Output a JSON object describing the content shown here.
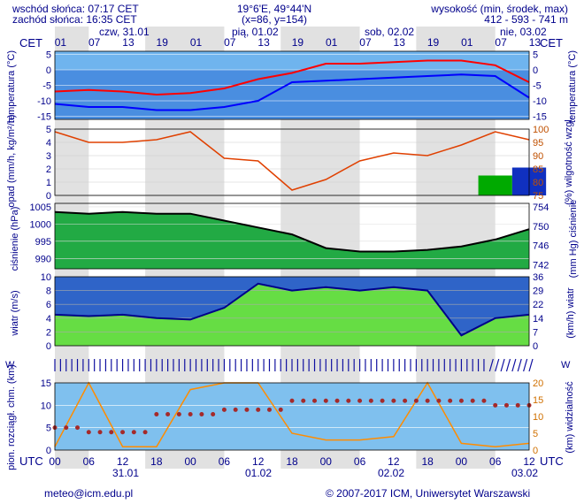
{
  "header": {
    "sunrise": "wschód słońca: 07:17 CET",
    "sunset": "zachód słońca: 16:35 CET",
    "coords": "19°6'E, 49°44'N",
    "grid": "(x=86, y=154)",
    "alt_label": "wysokość (min, środek, max)",
    "alt_values": "412 - 593 - 741 m"
  },
  "footer": {
    "email": "meteo@icm.edu.pl",
    "copyright": "© 2007-2017 ICM, Uniwersytet Warszawski"
  },
  "days_top": [
    "czw, 31.01",
    "pią, 01.02",
    "sob, 02.02",
    "nie, 03.02"
  ],
  "days_bottom": [
    "31.01",
    "01.02",
    "02.02",
    "03.02"
  ],
  "top_axis": {
    "label": "CET",
    "ticks": [
      "01",
      "07",
      "13",
      "19",
      "01",
      "07",
      "13",
      "19",
      "01",
      "07",
      "13",
      "19",
      "01",
      "07",
      "13"
    ]
  },
  "bottom_axis": {
    "label": "UTC",
    "ticks": [
      "00",
      "06",
      "12",
      "18",
      "00",
      "06",
      "12",
      "18",
      "00",
      "06",
      "12",
      "18",
      "00",
      "06",
      "12"
    ]
  },
  "colors": {
    "night": "#c8c8c8",
    "text": "#00008b",
    "temp_line": "#ff0000",
    "dew_line": "#0000ff",
    "humidity_line": "#e04000",
    "pressure_line": "#000000",
    "wind_line": "#00008b",
    "cloud_dots": "#a52a2a",
    "visibility_line": "#ff8c00"
  },
  "chart_data": [
    {
      "type": "line",
      "panel": "temperature",
      "ylabel_left": "temperatura (°C)",
      "ylabel_right": "temperatura (°C)",
      "ylim": [
        -16,
        6
      ],
      "yticks": [
        5,
        0,
        -5,
        -10,
        -15
      ],
      "x_hours": [
        0,
        6,
        12,
        18,
        24,
        30,
        36,
        42,
        48,
        54,
        60,
        66,
        72,
        78,
        84
      ],
      "series": [
        {
          "name": "temperature",
          "values": [
            -7,
            -6.5,
            -7,
            -8,
            -7.5,
            -6,
            -3,
            -1,
            2,
            2,
            2.5,
            3,
            3,
            1.5,
            -4
          ]
        },
        {
          "name": "dew point",
          "values": [
            -11,
            -12,
            -12,
            -13,
            -13,
            -12,
            -10,
            -4,
            -3.5,
            -3,
            -2.5,
            -2,
            -1.5,
            -2,
            -9
          ]
        }
      ]
    },
    {
      "type": "line",
      "panel": "precipitation",
      "ylabel_left": "opad (mm/h, kg/m²/h)",
      "ylabel_right": "(%) wilgotność wzgl.",
      "ylim": [
        0,
        5
      ],
      "yticks_left": [
        5,
        4,
        3,
        2,
        1,
        0
      ],
      "yticks_right": [
        100,
        95,
        90,
        85,
        80,
        75
      ],
      "x_hours": [
        0,
        6,
        12,
        18,
        24,
        30,
        36,
        42,
        48,
        54,
        60,
        66,
        72,
        78,
        84
      ],
      "series": [
        {
          "name": "humidity",
          "values": [
            99,
            95,
            95,
            96,
            99,
            89,
            88,
            77,
            81,
            88,
            91,
            90,
            94,
            99,
            96
          ]
        },
        {
          "name": "precipitation",
          "values": [
            0,
            0,
            0,
            0,
            0,
            0,
            0,
            0,
            0,
            0,
            0,
            0,
            0,
            1.5,
            2.1
          ]
        }
      ]
    },
    {
      "type": "line",
      "panel": "pressure",
      "ylabel_left": "ciśnienie (hPa)",
      "ylabel_right": "(mm Hg) ciśnienie",
      "ylim": [
        987,
        1006
      ],
      "yticks_left": [
        1005,
        1000,
        995,
        990
      ],
      "yticks_right": [
        754,
        750,
        746,
        742
      ],
      "x_hours": [
        0,
        6,
        12,
        18,
        24,
        30,
        36,
        42,
        48,
        54,
        60,
        66,
        72,
        78,
        84
      ],
      "series": [
        {
          "name": "pressure",
          "values": [
            1003.5,
            1003,
            1003.5,
            1003,
            1003,
            1001,
            999,
            997,
            993,
            992,
            992,
            992.5,
            993.5,
            995.5,
            998.5
          ]
        }
      ]
    },
    {
      "type": "line",
      "panel": "wind",
      "ylabel_left": "wiatr (m/s)",
      "ylabel_right": "(km/h) wiatr",
      "ylim": [
        0,
        10
      ],
      "yticks_left": [
        10,
        8,
        6,
        4,
        2,
        0
      ],
      "yticks_right": [
        36,
        29,
        22,
        14,
        7,
        0
      ],
      "x_hours": [
        0,
        6,
        12,
        18,
        24,
        30,
        36,
        42,
        48,
        54,
        60,
        66,
        72,
        78,
        84
      ],
      "series": [
        {
          "name": "wind speed",
          "values": [
            4.5,
            4.3,
            4.5,
            4,
            3.8,
            5.5,
            9,
            8,
            8.5,
            8,
            8.5,
            8,
            1.5,
            4,
            4.5
          ]
        }
      ]
    },
    {
      "type": "line",
      "panel": "clouds",
      "ylabel_left": "pion. rozciągł. chm. (km)",
      "ylabel_right": "(km) widzialność",
      "ylim": [
        0,
        15
      ],
      "yticks_left": [
        15,
        10,
        5,
        0
      ],
      "yticks_right": [
        20,
        15,
        10,
        5,
        0
      ],
      "x_hours": [
        0,
        6,
        12,
        18,
        24,
        30,
        36,
        42,
        48,
        54,
        60,
        66,
        72,
        78,
        84
      ],
      "series": [
        {
          "name": "cloud base",
          "values": [
            5,
            4,
            4,
            8,
            8,
            9,
            9,
            11,
            11,
            11,
            11,
            11,
            11,
            10,
            10
          ]
        },
        {
          "name": "visibility",
          "values": [
            1,
            20,
            1,
            1,
            18,
            20,
            20,
            5,
            3,
            3,
            4,
            20,
            2,
            1,
            2
          ]
        }
      ]
    }
  ]
}
